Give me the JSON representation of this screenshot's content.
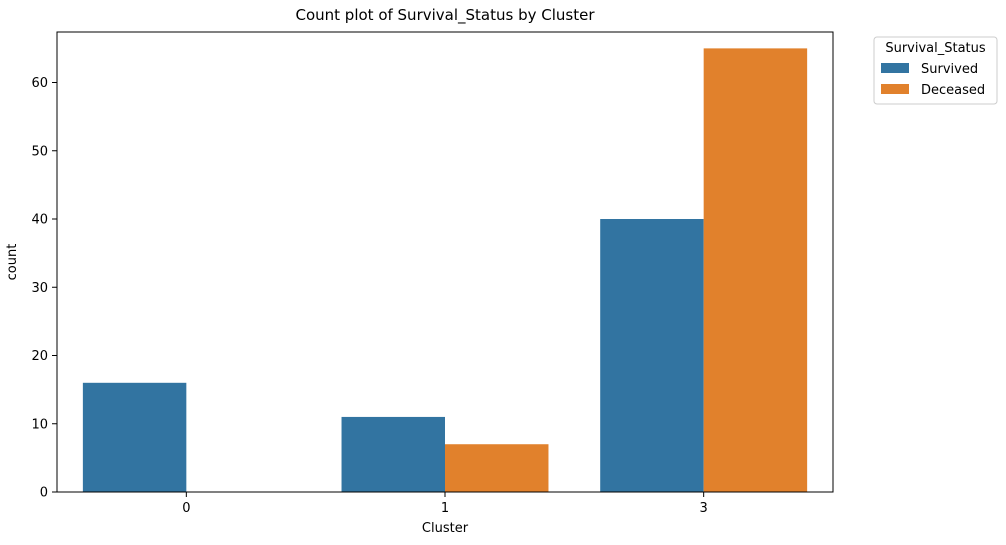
{
  "chart_data": {
    "type": "bar",
    "title": "Count plot of Survival_Status by Cluster",
    "xlabel": "Cluster",
    "ylabel": "count",
    "categories": [
      "0",
      "1",
      "3"
    ],
    "series": [
      {
        "name": "Survived",
        "values": [
          16,
          11,
          40
        ],
        "color": "#3274a1"
      },
      {
        "name": "Deceased",
        "values": [
          0,
          7,
          65
        ],
        "color": "#e1812c"
      }
    ],
    "ylim": [
      0,
      67.4
    ],
    "yticks": [
      0,
      10,
      20,
      30,
      40,
      50,
      60
    ],
    "legend": {
      "title": "Survival_Status",
      "placement": "outside upper right"
    },
    "grid": false
  }
}
